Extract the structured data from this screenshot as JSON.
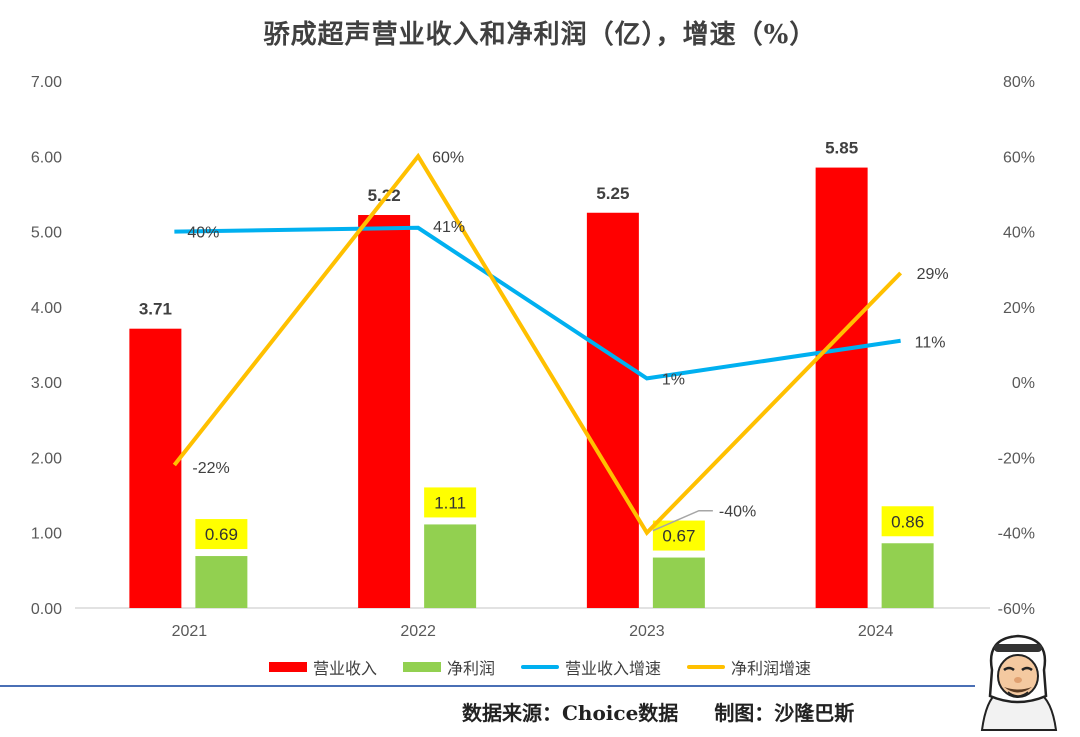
{
  "chart_data": {
    "type": "bar",
    "title": "骄成超声营业收入和净利润（亿），增速（%）",
    "categories": [
      "2021",
      "2022",
      "2023",
      "2024"
    ],
    "series": [
      {
        "name": "营业收入",
        "kind": "bar",
        "axis": "left",
        "color": "#ff0000",
        "values": [
          3.71,
          5.22,
          5.25,
          5.85
        ],
        "labels": [
          "3.71",
          "5.22",
          "5.25",
          "5.85"
        ]
      },
      {
        "name": "净利润",
        "kind": "bar",
        "axis": "left",
        "color": "#92d050",
        "values": [
          0.69,
          1.11,
          0.67,
          0.86
        ],
        "labels": [
          "0.69",
          "1.11",
          "0.67",
          "0.86"
        ]
      },
      {
        "name": "营业收入增速",
        "kind": "line",
        "axis": "right",
        "color": "#00b0f0",
        "values": [
          40,
          41,
          1,
          11
        ],
        "labels": [
          "40%",
          "41%",
          "1%",
          "11%"
        ]
      },
      {
        "name": "净利润增速",
        "kind": "line",
        "axis": "right",
        "color": "#ffc000",
        "values": [
          -22,
          60,
          -40,
          29
        ],
        "labels": [
          "-22%",
          "60%",
          "-40%",
          "29%"
        ]
      }
    ],
    "y_left": {
      "range": [
        0,
        7
      ],
      "ticks": [
        "0.00",
        "1.00",
        "2.00",
        "3.00",
        "4.00",
        "5.00",
        "6.00",
        "7.00"
      ]
    },
    "y_right": {
      "range": [
        -60,
        80
      ],
      "ticks": [
        "-60%",
        "-40%",
        "-20%",
        "0%",
        "20%",
        "40%",
        "60%",
        "80%"
      ]
    },
    "grid": false,
    "legend": "bottom",
    "label_highlight_color": "#ffff00"
  },
  "footer": {
    "source": "数据来源：Choice数据",
    "maker": "制图：沙隆巴斯"
  },
  "avatar_icon": "cartoon-mascot-icon"
}
